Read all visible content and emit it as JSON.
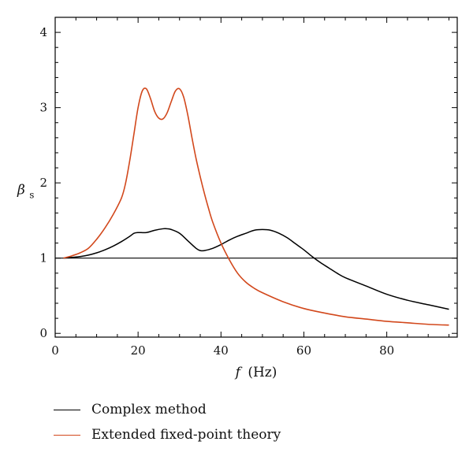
{
  "chart_data": {
    "type": "line",
    "xlabel": "f (Hz)",
    "xlabel_italic": "f",
    "xlabel_unit": "(Hz)",
    "ylabel": "β_s",
    "ylabel_main": "β",
    "ylabel_sub": "s",
    "xlim": [
      0,
      97
    ],
    "ylim": [
      -0.05,
      4.2
    ],
    "xticks": [
      0,
      20,
      40,
      60,
      80
    ],
    "yticks": [
      0,
      1,
      2,
      3,
      4
    ],
    "grid": false,
    "legend_position": "bottom-left",
    "reference_line": {
      "y": 1,
      "color": "#000000"
    },
    "series": [
      {
        "name": "Complex method",
        "color": "#000000",
        "x": [
          2,
          4,
          6,
          8,
          10,
          12,
          14,
          16,
          18,
          19,
          20,
          22,
          24,
          26,
          27,
          28,
          30,
          32,
          34,
          35,
          36,
          38,
          40,
          42,
          44,
          46,
          48,
          50,
          52,
          54,
          56,
          58,
          60,
          62,
          64,
          66,
          68,
          70,
          75,
          80,
          85,
          90,
          95
        ],
        "y": [
          1.0,
          1.01,
          1.02,
          1.04,
          1.07,
          1.11,
          1.16,
          1.22,
          1.29,
          1.33,
          1.34,
          1.34,
          1.37,
          1.39,
          1.39,
          1.38,
          1.33,
          1.23,
          1.13,
          1.1,
          1.1,
          1.13,
          1.18,
          1.24,
          1.29,
          1.33,
          1.37,
          1.38,
          1.37,
          1.33,
          1.27,
          1.19,
          1.11,
          1.02,
          0.94,
          0.87,
          0.8,
          0.74,
          0.63,
          0.52,
          0.44,
          0.38,
          0.32
        ]
      },
      {
        "name": "Extended fixed-point theory",
        "color": "#d2481c",
        "x": [
          2,
          4,
          6,
          8,
          10,
          12,
          14,
          16,
          17,
          18,
          19,
          20,
          21,
          22,
          23,
          24,
          25,
          26,
          27,
          28,
          29,
          30,
          31,
          32,
          33,
          34,
          35,
          36,
          37,
          38,
          40,
          42,
          44,
          46,
          48,
          50,
          55,
          60,
          65,
          70,
          75,
          80,
          85,
          90,
          95
        ],
        "y": [
          1.0,
          1.03,
          1.07,
          1.13,
          1.25,
          1.4,
          1.58,
          1.8,
          2.0,
          2.3,
          2.65,
          3.0,
          3.22,
          3.25,
          3.12,
          2.95,
          2.86,
          2.85,
          2.93,
          3.08,
          3.22,
          3.25,
          3.14,
          2.9,
          2.6,
          2.32,
          2.08,
          1.86,
          1.66,
          1.48,
          1.2,
          0.98,
          0.8,
          0.68,
          0.6,
          0.54,
          0.42,
          0.33,
          0.27,
          0.22,
          0.19,
          0.16,
          0.14,
          0.12,
          0.11
        ]
      }
    ]
  },
  "legend": {
    "items": [
      {
        "label": "Complex method",
        "color": "#000000"
      },
      {
        "label": "Extended fixed-point theory",
        "color": "#d2481c"
      }
    ]
  }
}
